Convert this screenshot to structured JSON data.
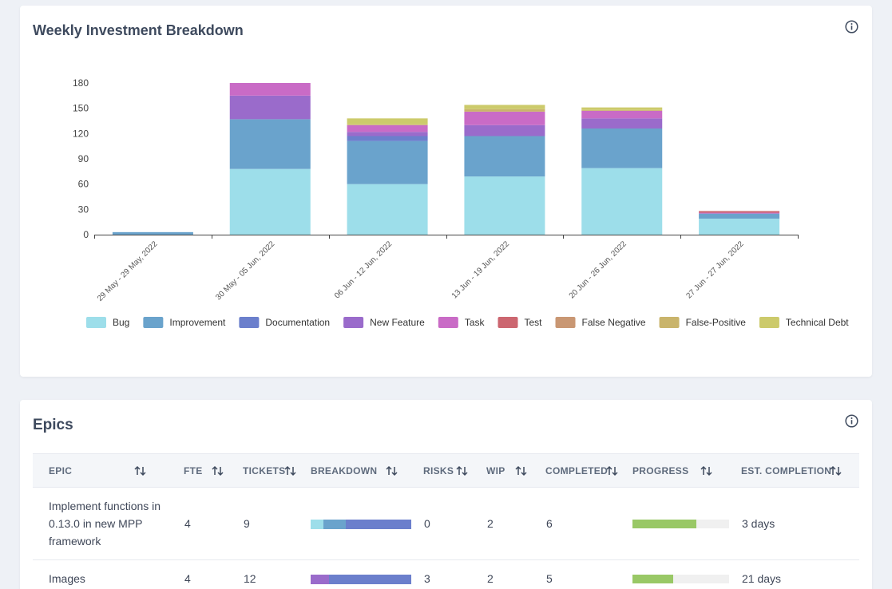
{
  "weekly": {
    "title": "Weekly Investment Breakdown",
    "info_icon": "info-icon"
  },
  "chart_data": {
    "type": "bar",
    "stacked": true,
    "title": "Weekly Investment Breakdown",
    "categories": [
      "29 May - 29 May, 2022",
      "30 May - 05 Jun, 2022",
      "06 Jun - 12 Jun, 2022",
      "13 Jun - 19 Jun, 2022",
      "20 Jun - 26 Jun, 2022",
      "27 Jun - 27 Jun, 2022"
    ],
    "ylim": [
      0,
      180
    ],
    "yticks": [
      0,
      30,
      60,
      90,
      120,
      150,
      180
    ],
    "legend_position": "bottom",
    "grid": false,
    "series": [
      {
        "name": "Bug",
        "color": "#9ddeea",
        "values": [
          0,
          78,
          60,
          69,
          79,
          19
        ]
      },
      {
        "name": "Improvement",
        "color": "#6aa3cc",
        "values": [
          3,
          59,
          51,
          48,
          47,
          6
        ]
      },
      {
        "name": "Documentation",
        "color": "#6b7fcc",
        "values": [
          0,
          0,
          6,
          0,
          0,
          0
        ]
      },
      {
        "name": "New Feature",
        "color": "#9a6bcb",
        "values": [
          0,
          28,
          5,
          13,
          12,
          0
        ]
      },
      {
        "name": "Task",
        "color": "#c96bc6",
        "values": [
          0,
          15,
          8,
          16,
          9,
          1
        ]
      },
      {
        "name": "Test",
        "color": "#cc6670",
        "values": [
          0,
          0,
          0,
          0,
          0,
          2
        ]
      },
      {
        "name": "False Negative",
        "color": "#c99773",
        "values": [
          0,
          0,
          0,
          0,
          0,
          0
        ]
      },
      {
        "name": "False-Positive",
        "color": "#c9b46b",
        "values": [
          0,
          0,
          1,
          3,
          1,
          0
        ]
      },
      {
        "name": "Technical Debt",
        "color": "#ccca6b",
        "values": [
          0,
          0,
          7,
          5,
          3,
          0
        ]
      }
    ]
  },
  "epics": {
    "title": "Epics",
    "columns": [
      "EPIC",
      "FTE",
      "TICKETS",
      "BREAKDOWN",
      "RISKS",
      "WIP",
      "COMPLETED",
      "PROGRESS",
      "EST. COMPLETION"
    ],
    "rows": [
      {
        "epic": "Implement functions in 0.13.0 in new MPP framework",
        "fte": "4",
        "tickets": "9",
        "breakdown": [
          {
            "name": "Bug",
            "color": "#9ddeea",
            "fraction": 0.13
          },
          {
            "name": "Improvement",
            "color": "#6aa3cc",
            "fraction": 0.22
          },
          {
            "name": "Documentation",
            "color": "#6b7fcc",
            "fraction": 0.65
          }
        ],
        "risks": "0",
        "wip": "2",
        "completed": "6",
        "progress": 0.66,
        "est_completion": "3 days"
      },
      {
        "epic": "Images",
        "fte": "4",
        "tickets": "12",
        "breakdown": [
          {
            "name": "New Feature",
            "color": "#9a6bcb",
            "fraction": 0.18
          },
          {
            "name": "Documentation",
            "color": "#6b7fcc",
            "fraction": 0.82
          }
        ],
        "risks": "3",
        "wip": "2",
        "completed": "5",
        "progress": 0.42,
        "est_completion": "21 days"
      }
    ]
  }
}
